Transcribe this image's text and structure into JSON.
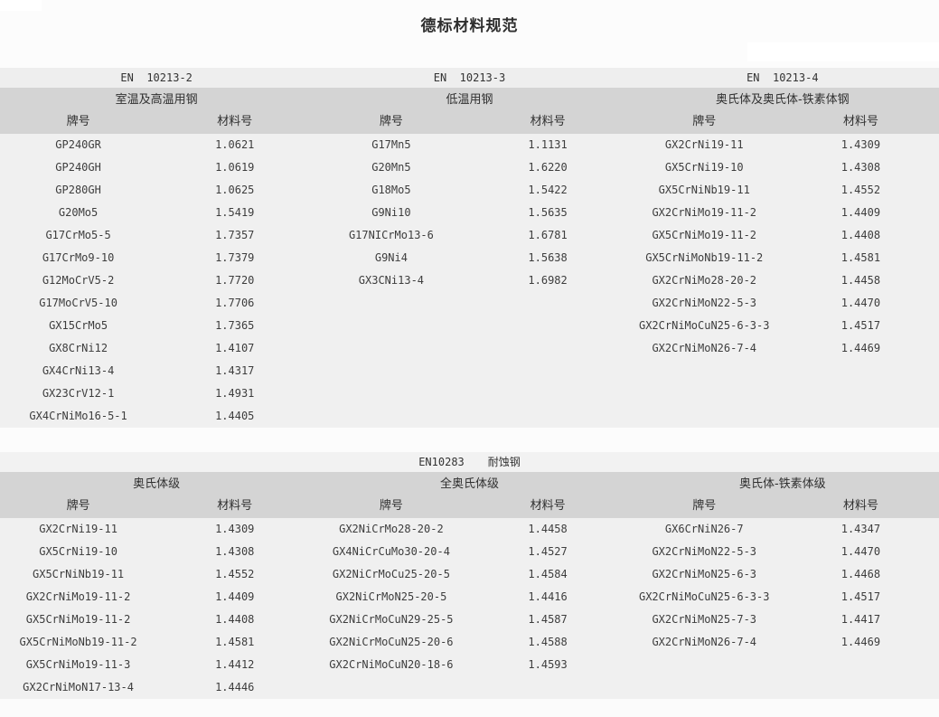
{
  "page": {
    "title": "德标材料规范"
  },
  "colors": {
    "page_bg": "#fbfbfb",
    "band_bg": "#d4d4d4",
    "en_row_bg": "#eeeeee",
    "body_bg": "#f0f0f0",
    "text": "#333333"
  },
  "top_section": {
    "standards": [
      "EN  10213-2",
      "EN  10213-3",
      "EN  10213-4"
    ],
    "tables": [
      {
        "title": "室温及高温用钢",
        "col_grade": "牌号",
        "col_number": "材料号",
        "rows": [
          [
            "GP240GR",
            "1.0621"
          ],
          [
            "GP240GH",
            "1.0619"
          ],
          [
            "GP280GH",
            "1.0625"
          ],
          [
            "G20Mo5",
            "1.5419"
          ],
          [
            "G17CrMo5-5",
            "1.7357"
          ],
          [
            "G17CrMo9-10",
            "1.7379"
          ],
          [
            "G12MoCrV5-2",
            "1.7720"
          ],
          [
            "G17MoCrV5-10",
            "1.7706"
          ],
          [
            "GX15CrMo5",
            "1.7365"
          ],
          [
            "GX8CrNi12",
            "1.4107"
          ],
          [
            "GX4CrNi13-4",
            "1.4317"
          ],
          [
            "GX23CrV12-1",
            "1.4931"
          ],
          [
            "GX4CrNiMo16-5-1",
            "1.4405"
          ]
        ]
      },
      {
        "title": "低温用钢",
        "col_grade": "牌号",
        "col_number": "材料号",
        "rows": [
          [
            "G17Mn5",
            "1.1131"
          ],
          [
            "G20Mn5",
            "1.6220"
          ],
          [
            "G18Mo5",
            "1.5422"
          ],
          [
            "G9Ni10",
            "1.5635"
          ],
          [
            "G17NICrMo13-6",
            "1.6781"
          ],
          [
            "G9Ni4",
            "1.5638"
          ],
          [
            "GX3CNi13-4",
            "1.6982"
          ]
        ]
      },
      {
        "title": "奥氏体及奥氏体-铁素体钢",
        "col_grade": "牌号",
        "col_number": "材料号",
        "rows": [
          [
            "GX2CrNi19-11",
            "1.4309"
          ],
          [
            "GX5CrNi19-10",
            "1.4308"
          ],
          [
            "GX5CrNiNb19-11",
            "1.4552"
          ],
          [
            "GX2CrNiMo19-11-2",
            "1.4409"
          ],
          [
            "GX5CrNiMo19-11-2",
            "1.4408"
          ],
          [
            "GX5CrNiMoNb19-11-2",
            "1.4581"
          ],
          [
            "GX2CrNiMo28-20-2",
            "1.4458"
          ],
          [
            "GX2CrNiMoN22-5-3",
            "1.4470"
          ],
          [
            "GX2CrNiMoCuN25-6-3-3",
            "1.4517"
          ],
          [
            "GX2CrNiMoN26-7-4",
            "1.4469"
          ]
        ]
      }
    ]
  },
  "bottom_section": {
    "standard": "EN10283",
    "standard_label": "耐蚀钢",
    "tables": [
      {
        "title": "奥氏体级",
        "col_grade": "牌号",
        "col_number": "材料号",
        "rows": [
          [
            "GX2CrNi19-11",
            "1.4309"
          ],
          [
            "GX5CrNi19-10",
            "1.4308"
          ],
          [
            "GX5CrNiNb19-11",
            "1.4552"
          ],
          [
            "GX2CrNiMo19-11-2",
            "1.4409"
          ],
          [
            "GX5CrNiMo19-11-2",
            "1.4408"
          ],
          [
            "GX5CrNiMoNb19-11-2",
            "1.4581"
          ],
          [
            "GX5CrNiMo19-11-3",
            "1.4412"
          ],
          [
            "GX2CrNiMoN17-13-4",
            "1.4446"
          ]
        ]
      },
      {
        "title": "全奥氏体级",
        "col_grade": "牌号",
        "col_number": "材料号",
        "rows": [
          [
            "GX2NiCrMo28-20-2",
            "1.4458"
          ],
          [
            "GX4NiCrCuMo30-20-4",
            "1.4527"
          ],
          [
            "GX2NiCrMoCu25-20-5",
            "1.4584"
          ],
          [
            "GX2NiCrMoN25-20-5",
            "1.4416"
          ],
          [
            "GX2NiCrMoCuN29-25-5",
            "1.4587"
          ],
          [
            "GX2NiCrMoCuN25-20-6",
            "1.4588"
          ],
          [
            "GX2CrNiMoCuN20-18-6",
            "1.4593"
          ]
        ]
      },
      {
        "title": "奥氏体-铁素体级",
        "col_grade": "牌号",
        "col_number": "材料号",
        "rows": [
          [
            "GX6CrNiN26-7",
            "1.4347"
          ],
          [
            "GX2CrNiMoN22-5-3",
            "1.4470"
          ],
          [
            "GX2CrNiMoN25-6-3",
            "1.4468"
          ],
          [
            "GX2CrNiMoCuN25-6-3-3",
            "1.4517"
          ],
          [
            "GX2CrNiMoN25-7-3",
            "1.4417"
          ],
          [
            "GX2CrNiMoN26-7-4",
            "1.4469"
          ]
        ]
      }
    ]
  }
}
